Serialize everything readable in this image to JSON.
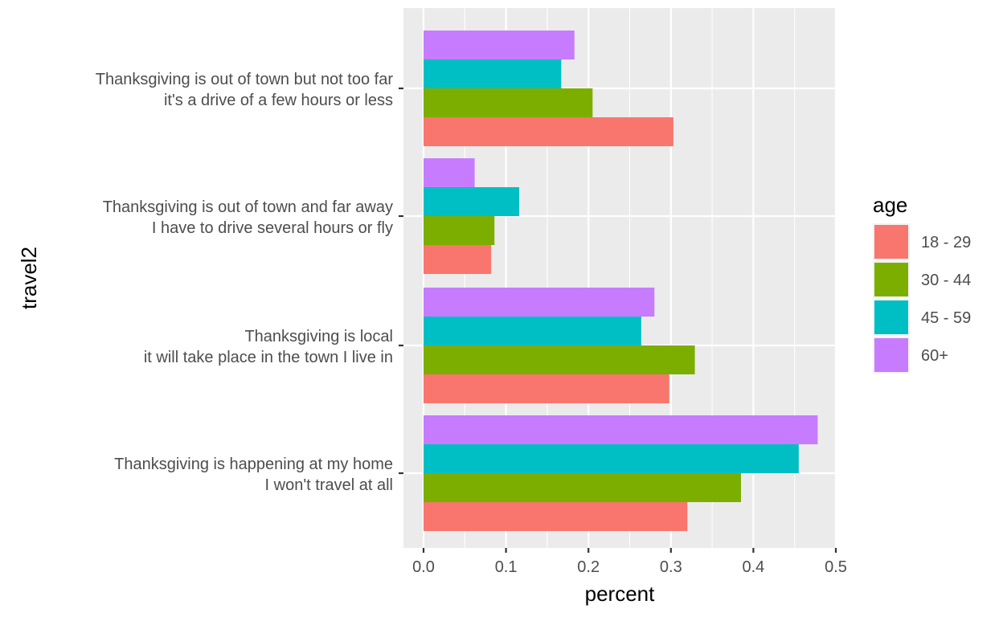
{
  "chart_data": {
    "type": "bar",
    "orientation": "horizontal",
    "xlabel": "percent",
    "ylabel": "travel2",
    "xlim": [
      0,
      0.5
    ],
    "x_ticks": [
      "0.0",
      "0.1",
      "0.2",
      "0.3",
      "0.4",
      "0.5"
    ],
    "grid": true,
    "legend": {
      "title": "age",
      "position": "right"
    },
    "categories": [
      [
        "Thanksgiving is out of town but not too far",
        "it's a drive of a few hours or less"
      ],
      [
        "Thanksgiving is out of town and far away",
        "I have to drive several hours or fly"
      ],
      [
        "Thanksgiving is local",
        "it will take place in the town I live in"
      ],
      [
        "Thanksgiving is happening at my home",
        "I won't travel at all"
      ]
    ],
    "series": [
      {
        "name": "18 - 29",
        "color": "#F8766D",
        "values": [
          0.303,
          0.082,
          0.298,
          0.32
        ]
      },
      {
        "name": "30 - 44",
        "color": "#7CAE00",
        "values": [
          0.205,
          0.086,
          0.329,
          0.385
        ]
      },
      {
        "name": "45 - 59",
        "color": "#00BFC4",
        "values": [
          0.167,
          0.116,
          0.264,
          0.455
        ]
      },
      {
        "name": "60+",
        "color": "#C77CFF",
        "values": [
          0.183,
          0.062,
          0.28,
          0.478
        ]
      }
    ]
  }
}
